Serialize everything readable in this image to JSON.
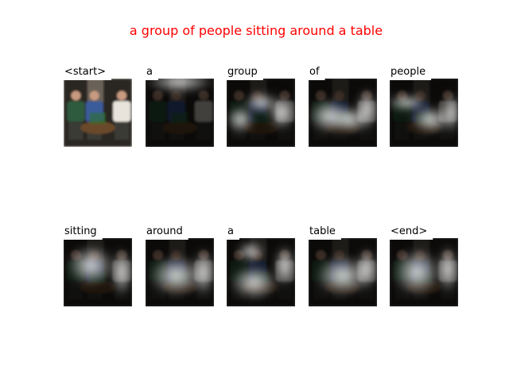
{
  "title": "a group of people sitting around a table",
  "words": [
    "<start>",
    "a",
    "group",
    "of",
    "people",
    "sitting",
    "around",
    "a",
    "table",
    "<end>"
  ]
}
